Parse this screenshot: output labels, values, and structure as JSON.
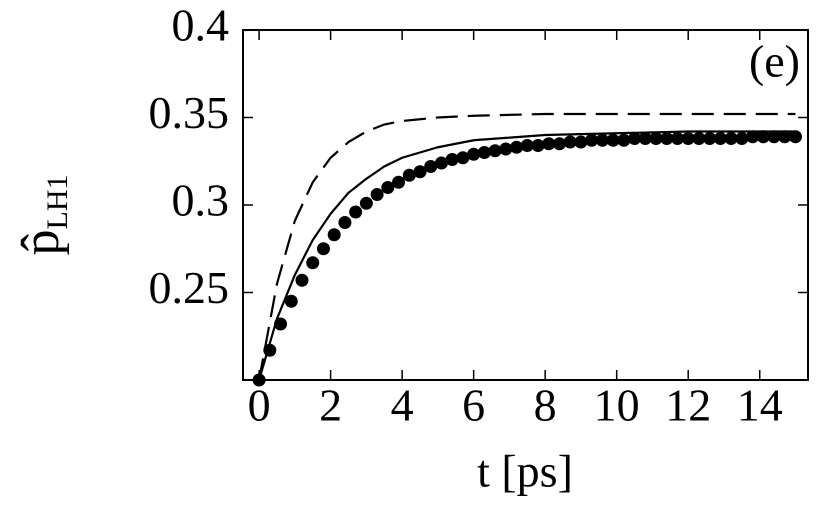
{
  "chart_data": {
    "type": "line",
    "annotation": "(e)",
    "xlabel": "t [ps]",
    "ylabel": "p̂",
    "ylabel_subscript": "LH1",
    "xlim": [
      -0.45,
      15.35
    ],
    "ylim": [
      0.2,
      0.4
    ],
    "xticks": [
      0,
      2,
      4,
      6,
      8,
      10,
      12,
      14
    ],
    "yticks": [
      0.25,
      0.3,
      0.35,
      0.4
    ],
    "series": [
      {
        "style": "dashed",
        "color": "#000000",
        "x": [
          0,
          0.5,
          1,
          1.5,
          2,
          2.5,
          3,
          3.5,
          4,
          4.5,
          5,
          6,
          8,
          10,
          12,
          15
        ],
        "values": [
          0.2,
          0.255,
          0.291,
          0.313,
          0.327,
          0.336,
          0.342,
          0.346,
          0.348,
          0.349,
          0.35,
          0.351,
          0.352,
          0.352,
          0.352,
          0.352
        ]
      },
      {
        "style": "solid",
        "color": "#000000",
        "x": [
          0,
          0.5,
          1,
          1.5,
          2,
          2.5,
          3,
          3.5,
          4,
          4.5,
          5,
          6,
          8,
          10,
          12,
          15
        ],
        "values": [
          0.2,
          0.235,
          0.26,
          0.28,
          0.295,
          0.307,
          0.315,
          0.322,
          0.327,
          0.33,
          0.333,
          0.337,
          0.34,
          0.341,
          0.342,
          0.342
        ]
      },
      {
        "style": "dots",
        "color": "#000000",
        "x": [
          0,
          0.3,
          0.6,
          0.9,
          1.2,
          1.5,
          1.8,
          2.1,
          2.4,
          2.7,
          3,
          3.3,
          3.6,
          3.9,
          4.2,
          4.5,
          4.8,
          5.1,
          5.4,
          5.7,
          6,
          6.3,
          6.6,
          6.9,
          7.2,
          7.5,
          7.8,
          8.1,
          8.4,
          8.7,
          9,
          9.3,
          9.6,
          9.9,
          10.2,
          10.5,
          10.8,
          11.1,
          11.4,
          11.7,
          12,
          12.3,
          12.6,
          12.9,
          13.2,
          13.5,
          13.8,
          14.1,
          14.4,
          14.7,
          15
        ],
        "values": [
          0.2,
          0.217,
          0.232,
          0.245,
          0.257,
          0.267,
          0.275,
          0.283,
          0.29,
          0.296,
          0.301,
          0.306,
          0.31,
          0.313,
          0.317,
          0.319,
          0.322,
          0.324,
          0.326,
          0.327,
          0.329,
          0.33,
          0.331,
          0.332,
          0.333,
          0.334,
          0.334,
          0.335,
          0.335,
          0.336,
          0.336,
          0.337,
          0.337,
          0.337,
          0.337,
          0.338,
          0.338,
          0.338,
          0.338,
          0.338,
          0.338,
          0.338,
          0.338,
          0.338,
          0.338,
          0.338,
          0.339,
          0.339,
          0.339,
          0.339,
          0.339
        ]
      }
    ]
  }
}
